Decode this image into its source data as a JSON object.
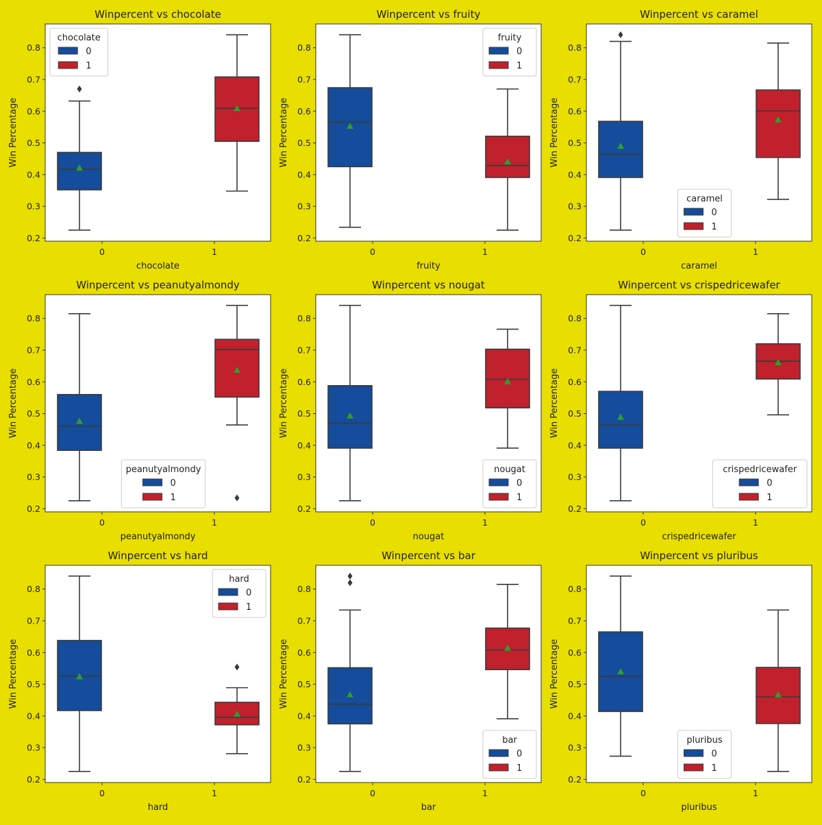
{
  "figure": {
    "background": "#e8de00"
  },
  "colors": {
    "group_0": "#154c9b",
    "group_1": "#c1202d",
    "mean_marker": "#2ca02c",
    "lines": "#3a3a3a"
  },
  "chart_data": [
    {
      "type": "box",
      "title": "Winpercent vs chocolate",
      "xlabel": "chocolate",
      "ylabel": "Win Percentage",
      "categories": [
        "0",
        "1"
      ],
      "legend": {
        "title": "chocolate",
        "entries": [
          "0",
          "1"
        ],
        "position": "upper-left"
      },
      "ylim": [
        0.19,
        0.875
      ],
      "yticks": [
        0.2,
        0.3,
        0.4,
        0.5,
        0.6,
        0.7,
        0.8
      ],
      "boxes": [
        {
          "group": "0",
          "whislo": 0.225,
          "q1": 0.352,
          "median": 0.417,
          "q3": 0.47,
          "whishi": 0.632,
          "mean": 0.421,
          "fliers": [
            0.67
          ]
        },
        {
          "group": "1",
          "whislo": 0.348,
          "q1": 0.505,
          "median": 0.609,
          "q3": 0.708,
          "whishi": 0.841,
          "mean": 0.609,
          "fliers": []
        }
      ]
    },
    {
      "type": "box",
      "title": "Winpercent vs fruity",
      "xlabel": "fruity",
      "ylabel": "Win Percentage",
      "categories": [
        "0",
        "1"
      ],
      "legend": {
        "title": "fruity",
        "entries": [
          "0",
          "1"
        ],
        "position": "upper-right"
      },
      "ylim": [
        0.19,
        0.875
      ],
      "yticks": [
        0.2,
        0.3,
        0.4,
        0.5,
        0.6,
        0.7,
        0.8
      ],
      "boxes": [
        {
          "group": "0",
          "whislo": 0.234,
          "q1": 0.425,
          "median": 0.565,
          "q3": 0.674,
          "whishi": 0.841,
          "mean": 0.553,
          "fliers": []
        },
        {
          "group": "1",
          "whislo": 0.225,
          "q1": 0.391,
          "median": 0.429,
          "q3": 0.521,
          "whishi": 0.67,
          "mean": 0.441,
          "fliers": []
        }
      ]
    },
    {
      "type": "box",
      "title": "Winpercent vs caramel",
      "xlabel": "caramel",
      "ylabel": "Win Percentage",
      "categories": [
        "0",
        "1"
      ],
      "legend": {
        "title": "caramel",
        "entries": [
          "0",
          "1"
        ],
        "position": "lower-center"
      },
      "ylim": [
        0.19,
        0.875
      ],
      "yticks": [
        0.2,
        0.3,
        0.4,
        0.5,
        0.6,
        0.7,
        0.8
      ],
      "boxes": [
        {
          "group": "0",
          "whislo": 0.225,
          "q1": 0.391,
          "median": 0.464,
          "q3": 0.568,
          "whishi": 0.82,
          "mean": 0.49,
          "fliers": [
            0.841
          ]
        },
        {
          "group": "1",
          "whislo": 0.322,
          "q1": 0.454,
          "median": 0.601,
          "q3": 0.667,
          "whishi": 0.815,
          "mean": 0.573,
          "fliers": []
        }
      ]
    },
    {
      "type": "box",
      "title": "Winpercent vs peanutyalmondy",
      "xlabel": "peanutyalmondy",
      "ylabel": "Win Percentage",
      "categories": [
        "0",
        "1"
      ],
      "legend": {
        "title": "peanutyalmondy",
        "entries": [
          "0",
          "1"
        ],
        "position": "lower-center"
      },
      "ylim": [
        0.19,
        0.875
      ],
      "yticks": [
        0.2,
        0.3,
        0.4,
        0.5,
        0.6,
        0.7,
        0.8
      ],
      "boxes": [
        {
          "group": "0",
          "whislo": 0.225,
          "q1": 0.384,
          "median": 0.46,
          "q3": 0.56,
          "whishi": 0.815,
          "mean": 0.476,
          "fliers": []
        },
        {
          "group": "1",
          "whislo": 0.464,
          "q1": 0.552,
          "median": 0.702,
          "q3": 0.734,
          "whishi": 0.841,
          "mean": 0.637,
          "fliers": [
            0.234
          ]
        }
      ]
    },
    {
      "type": "box",
      "title": "Winpercent vs nougat",
      "xlabel": "nougat",
      "ylabel": "Win Percentage",
      "categories": [
        "0",
        "1"
      ],
      "legend": {
        "title": "nougat",
        "entries": [
          "0",
          "1"
        ],
        "position": "lower-right"
      },
      "ylim": [
        0.19,
        0.875
      ],
      "yticks": [
        0.2,
        0.3,
        0.4,
        0.5,
        0.6,
        0.7,
        0.8
      ],
      "boxes": [
        {
          "group": "0",
          "whislo": 0.225,
          "q1": 0.391,
          "median": 0.47,
          "q3": 0.588,
          "whishi": 0.841,
          "mean": 0.493,
          "fliers": []
        },
        {
          "group": "1",
          "whislo": 0.391,
          "q1": 0.518,
          "median": 0.608,
          "q3": 0.703,
          "whishi": 0.766,
          "mean": 0.601,
          "fliers": []
        }
      ]
    },
    {
      "type": "box",
      "title": "Winpercent vs crispedricewafer",
      "xlabel": "crispedricewafer",
      "ylabel": "Win Percentage",
      "categories": [
        "0",
        "1"
      ],
      "legend": {
        "title": "crispedricewafer",
        "entries": [
          "0",
          "1"
        ],
        "position": "lower-right"
      },
      "ylim": [
        0.19,
        0.875
      ],
      "yticks": [
        0.2,
        0.3,
        0.4,
        0.5,
        0.6,
        0.7,
        0.8
      ],
      "boxes": [
        {
          "group": "0",
          "whislo": 0.225,
          "q1": 0.391,
          "median": 0.464,
          "q3": 0.57,
          "whishi": 0.841,
          "mean": 0.489,
          "fliers": []
        },
        {
          "group": "1",
          "whislo": 0.496,
          "q1": 0.609,
          "median": 0.665,
          "q3": 0.72,
          "whishi": 0.815,
          "mean": 0.661,
          "fliers": []
        }
      ]
    },
    {
      "type": "box",
      "title": "Winpercent vs hard",
      "xlabel": "hard",
      "ylabel": "Win Percentage",
      "categories": [
        "0",
        "1"
      ],
      "legend": {
        "title": "hard",
        "entries": [
          "0",
          "1"
        ],
        "position": "upper-right"
      },
      "ylim": [
        0.19,
        0.875
      ],
      "yticks": [
        0.2,
        0.3,
        0.4,
        0.5,
        0.6,
        0.7,
        0.8
      ],
      "boxes": [
        {
          "group": "0",
          "whislo": 0.225,
          "q1": 0.417,
          "median": 0.526,
          "q3": 0.638,
          "whishi": 0.841,
          "mean": 0.524,
          "fliers": []
        },
        {
          "group": "1",
          "whislo": 0.281,
          "q1": 0.372,
          "median": 0.396,
          "q3": 0.443,
          "whishi": 0.489,
          "mean": 0.406,
          "fliers": [
            0.554
          ]
        }
      ]
    },
    {
      "type": "box",
      "title": "Winpercent vs bar",
      "xlabel": "bar",
      "ylabel": "Win Percentage",
      "categories": [
        "0",
        "1"
      ],
      "legend": {
        "title": "bar",
        "entries": [
          "0",
          "1"
        ],
        "position": "lower-right"
      },
      "ylim": [
        0.19,
        0.875
      ],
      "yticks": [
        0.2,
        0.3,
        0.4,
        0.5,
        0.6,
        0.7,
        0.8
      ],
      "boxes": [
        {
          "group": "0",
          "whislo": 0.225,
          "q1": 0.375,
          "median": 0.437,
          "q3": 0.552,
          "whishi": 0.734,
          "mean": 0.467,
          "fliers": [
            0.82,
            0.841
          ]
        },
        {
          "group": "1",
          "whislo": 0.391,
          "q1": 0.546,
          "median": 0.608,
          "q3": 0.677,
          "whishi": 0.815,
          "mean": 0.614,
          "fliers": []
        }
      ]
    },
    {
      "type": "box",
      "title": "Winpercent vs pluribus",
      "xlabel": "pluribus",
      "ylabel": "Win Percentage",
      "categories": [
        "0",
        "1"
      ],
      "legend": {
        "title": "pluribus",
        "entries": [
          "0",
          "1"
        ],
        "position": "lower-center"
      },
      "ylim": [
        0.19,
        0.875
      ],
      "yticks": [
        0.2,
        0.3,
        0.4,
        0.5,
        0.6,
        0.7,
        0.8
      ],
      "boxes": [
        {
          "group": "0",
          "whislo": 0.273,
          "q1": 0.414,
          "median": 0.524,
          "q3": 0.665,
          "whishi": 0.841,
          "mean": 0.54,
          "fliers": []
        },
        {
          "group": "1",
          "whislo": 0.225,
          "q1": 0.376,
          "median": 0.46,
          "q3": 0.553,
          "whishi": 0.734,
          "mean": 0.467,
          "fliers": []
        }
      ]
    }
  ]
}
